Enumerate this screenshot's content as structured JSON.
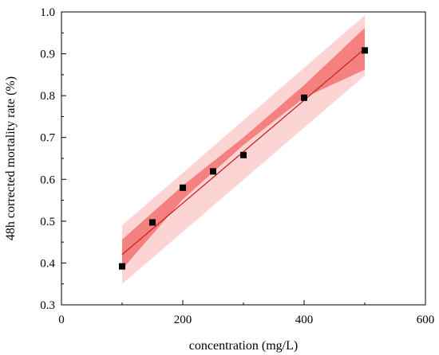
{
  "chart_data": {
    "type": "scatter",
    "title": "",
    "xlabel": "concentration (mg/L)",
    "ylabel": "48h corrected mortality rate (%)",
    "xlim": [
      0,
      600
    ],
    "ylim": [
      0.3,
      1.0
    ],
    "x_ticks": [
      0,
      200,
      400,
      600
    ],
    "y_ticks": [
      0.3,
      0.4,
      0.5,
      0.6,
      0.7,
      0.8,
      0.9,
      1.0
    ],
    "x_tick_labels": [
      "0",
      "200",
      "400",
      "600"
    ],
    "y_tick_labels": [
      "0.3",
      "0.4",
      "0.5",
      "0.6",
      "0.7",
      "0.8",
      "0.9",
      "1.0"
    ],
    "grid": false,
    "points": {
      "x": [
        100,
        150,
        200,
        250,
        300,
        400,
        500
      ],
      "y": [
        0.392,
        0.497,
        0.58,
        0.619,
        0.658,
        0.795,
        0.908
      ],
      "color": "#000000",
      "marker": "square"
    },
    "fit_line": {
      "x": [
        100,
        500
      ],
      "y": [
        0.42,
        0.912
      ],
      "color": "#d42020"
    },
    "confidence_band": {
      "x": [
        100,
        200,
        300,
        400,
        500
      ],
      "lower": [
        0.385,
        0.552,
        0.682,
        0.795,
        0.862
      ],
      "upper": [
        0.456,
        0.585,
        0.7,
        0.825,
        0.962
      ],
      "color": "#f48080"
    },
    "prediction_band": {
      "x": [
        100,
        500
      ],
      "lower": [
        0.35,
        0.848
      ],
      "upper": [
        0.49,
        0.992
      ],
      "color": "#fcd4d4"
    }
  }
}
